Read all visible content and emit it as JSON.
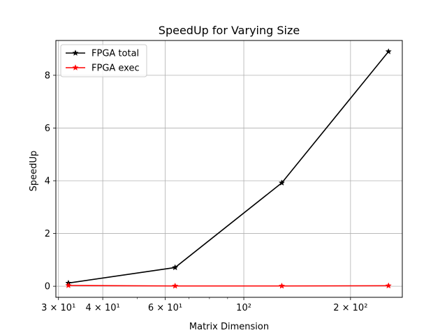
{
  "chart_data": {
    "type": "line",
    "title": "SpeedUp for Varying Size",
    "xlabel": "Matrix Dimension",
    "ylabel": "SpeedUp",
    "xscale": "log",
    "xlim": [
      29.5,
      280
    ],
    "ylim": [
      -0.42,
      9.32
    ],
    "grid": true,
    "legend_position": "top-left",
    "x_major_ticks": [
      {
        "value": 30,
        "label": "3 × 10¹"
      },
      {
        "value": 40,
        "label": "4 × 10¹"
      },
      {
        "value": 60,
        "label": "6 × 10¹"
      },
      {
        "value": 100,
        "label": "10²"
      },
      {
        "value": 200,
        "label": "2 × 10²"
      }
    ],
    "x_minor_ticks": [
      50,
      70,
      80,
      90
    ],
    "y_ticks": [
      0,
      2,
      4,
      6,
      8
    ],
    "x": [
      32,
      64,
      128,
      256
    ],
    "series": [
      {
        "name": "FPGA total",
        "values": [
          0.12,
          0.71,
          3.92,
          8.9
        ],
        "color": "#000000",
        "marker": "star"
      },
      {
        "name": "FPGA exec",
        "values": [
          0.03,
          0.01,
          0.01,
          0.02
        ],
        "color": "#ff0000",
        "marker": "star"
      }
    ]
  }
}
